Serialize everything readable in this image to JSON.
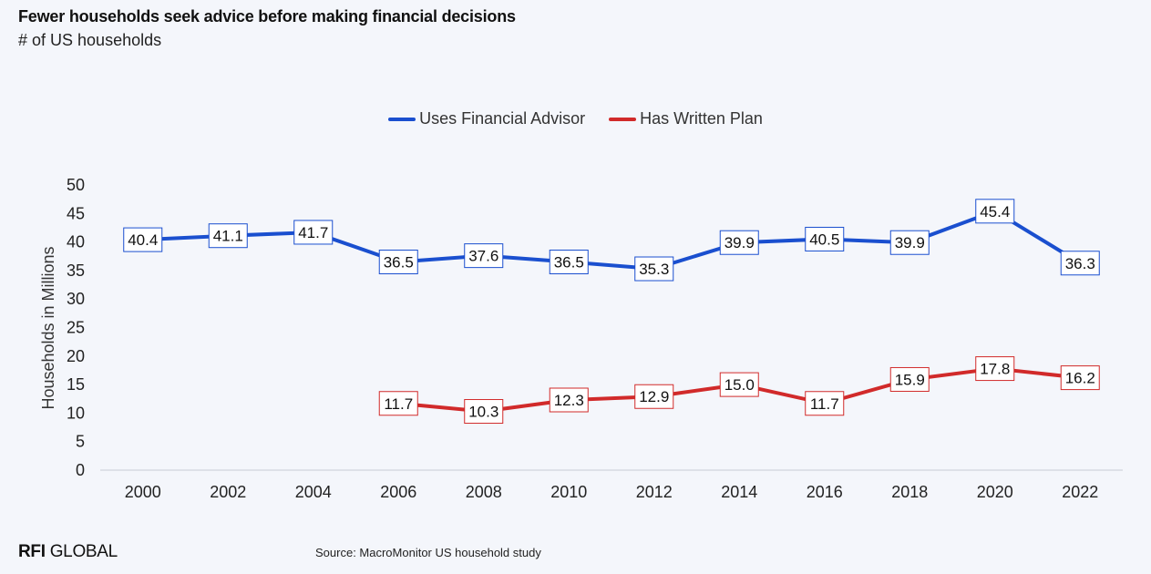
{
  "title": "Fewer households seek advice before making financial decisions",
  "subtitle": "# of US households",
  "logo": {
    "bold": "RFI",
    "rest": " GLOBAL"
  },
  "source": "Source: MacroMonitor US household study",
  "colors": {
    "advisor": "#1a4fcf",
    "plan": "#d12a2a",
    "axis": "#c8ccd4"
  },
  "chart_data": {
    "type": "line",
    "x": [
      "2000",
      "2002",
      "2004",
      "2006",
      "2008",
      "2010",
      "2012",
      "2014",
      "2016",
      "2018",
      "2020",
      "2022"
    ],
    "ylabel": "Households in Millions",
    "xlabel": "",
    "ylim": [
      0,
      50
    ],
    "yticks": [
      0,
      5,
      10,
      15,
      20,
      25,
      30,
      35,
      40,
      45,
      50
    ],
    "grid": false,
    "legend": "top-center",
    "series": [
      {
        "name": "Uses Financial Advisor",
        "color": "#1a4fcf",
        "values": [
          40.4,
          41.1,
          41.7,
          36.5,
          37.6,
          36.5,
          35.3,
          39.9,
          40.5,
          39.9,
          45.4,
          36.3
        ],
        "labels": [
          "40.4",
          "41.1",
          "41.7",
          "36.5",
          "37.6",
          "36.5",
          "35.3",
          "39.9",
          "40.5",
          "39.9",
          "45.4",
          "36.3"
        ]
      },
      {
        "name": "Has Written Plan",
        "color": "#d12a2a",
        "values": [
          null,
          null,
          null,
          11.7,
          10.3,
          12.3,
          12.9,
          15.0,
          11.7,
          15.9,
          17.8,
          16.2
        ],
        "labels": [
          "",
          "",
          "",
          "11.7",
          "10.3",
          "12.3",
          "12.9",
          "15.0",
          "11.7",
          "15.9",
          "17.8",
          "16.2"
        ]
      }
    ]
  }
}
